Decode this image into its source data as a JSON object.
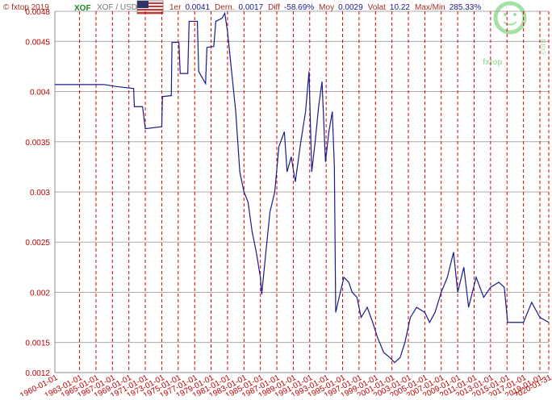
{
  "header": {
    "copyright": "© fxtop 2019",
    "code": "XOF",
    "pair": "XOF / USD",
    "stats": [
      {
        "label": "1er",
        "value": "0.0041"
      },
      {
        "label": "Dern.",
        "value": "0.0017"
      },
      {
        "label": "Diff",
        "value": "-58.69%"
      },
      {
        "label": "Moy",
        "value": "0.0029"
      },
      {
        "label": "Volat",
        "value": "10.22"
      },
      {
        "label": "Max/Min",
        "value": "285.33%"
      }
    ]
  },
  "logo": {
    "name": "fxtop",
    "domain": ".com"
  },
  "chart_data": {
    "type": "line",
    "x": [
      "1960-01-01",
      "1966-01-01",
      "1967-07-01",
      "1969-08-01",
      "1969-09-01",
      "1970-09-01",
      "1971-01-01",
      "1973-01-01",
      "1973-02-01",
      "1974-03-01",
      "1974-04-01",
      "1975-02-01",
      "1975-04-01",
      "1976-03-01",
      "1976-05-01",
      "1977-05-01",
      "1977-07-01",
      "1978-05-01",
      "1978-07-01",
      "1979-05-01",
      "1979-08-01",
      "1980-05-01",
      "1980-09-01",
      "1981-01-01",
      "1981-07-01",
      "1982-01-01",
      "1982-07-01",
      "1983-01-01",
      "1983-07-01",
      "1984-01-01",
      "1984-07-01",
      "1985-01-01",
      "1985-03-01",
      "1985-09-01",
      "1986-03-01",
      "1986-10-01",
      "1987-04-01",
      "1987-12-01",
      "1988-04-01",
      "1988-10-01",
      "1989-04-01",
      "1989-12-01",
      "1990-07-01",
      "1990-12-01",
      "1991-04-01",
      "1991-09-01",
      "1992-02-01",
      "1992-07-01",
      "1992-12-01",
      "1993-05-01",
      "1993-10-01",
      "1994-01-01",
      "1994-03-01",
      "1994-08-01",
      "1995-03-01",
      "1995-10-01",
      "1996-03-01",
      "1996-10-01",
      "1997-04-01",
      "1998-01-01",
      "1998-09-01",
      "1999-04-01",
      "2000-01-01",
      "2000-10-01",
      "2001-05-01",
      "2002-01-01",
      "2002-08-01",
      "2003-04-01",
      "2004-01-01",
      "2005-01-01",
      "2005-08-01",
      "2006-04-01",
      "2007-01-01",
      "2007-10-01",
      "2008-07-01",
      "2009-01-01",
      "2009-10-01",
      "2010-05-01",
      "2011-04-01",
      "2012-03-01",
      "2013-01-01",
      "2014-01-01",
      "2014-09-01",
      "2015-02-01",
      "2016-01-01",
      "2017-01-01",
      "2018-01-01",
      "2019-01-01",
      "2020-01-31"
    ],
    "series": [
      {
        "name": "XOF / USD",
        "color": "#1a1a8c",
        "values": [
          0.00407,
          0.00407,
          0.00405,
          0.00403,
          0.00385,
          0.00385,
          0.00363,
          0.00365,
          0.00395,
          0.00396,
          0.00449,
          0.00449,
          0.00418,
          0.00418,
          0.0047,
          0.0047,
          0.0042,
          0.00408,
          0.00444,
          0.00445,
          0.0047,
          0.00473,
          0.00478,
          0.0046,
          0.0042,
          0.0038,
          0.0032,
          0.003,
          0.0029,
          0.0026,
          0.0024,
          0.00215,
          0.00198,
          0.0024,
          0.0028,
          0.003,
          0.00345,
          0.0036,
          0.0032,
          0.00335,
          0.0031,
          0.0035,
          0.0038,
          0.0042,
          0.0032,
          0.0035,
          0.00385,
          0.0041,
          0.0033,
          0.0036,
          0.0038,
          0.00325,
          0.0018,
          0.00195,
          0.00215,
          0.0021,
          0.002,
          0.00195,
          0.00175,
          0.00185,
          0.0017,
          0.00155,
          0.0014,
          0.00135,
          0.0013,
          0.00135,
          0.0015,
          0.00175,
          0.00185,
          0.0018,
          0.0017,
          0.0018,
          0.002,
          0.00215,
          0.0024,
          0.002,
          0.00225,
          0.00185,
          0.00215,
          0.00195,
          0.00205,
          0.0021,
          0.00205,
          0.0017,
          0.0017,
          0.0017,
          0.0019,
          0.00175,
          0.0017
        ]
      }
    ],
    "xlim": [
      "1960-01-01",
      "2020-01-31"
    ],
    "xticks": [
      "1960-01-01",
      "1963-01-01",
      "1965-01-01",
      "1967-01-01",
      "1969-01-01",
      "1971-01-01",
      "1973-01-01",
      "1975-01-01",
      "1977-01-01",
      "1979-01-01",
      "1981-01-01",
      "1983-01-01",
      "1985-01-01",
      "1987-01-01",
      "1989-01-01",
      "1991-01-01",
      "1993-01-01",
      "1995-01-01",
      "1997-01-01",
      "1999-01-01",
      "2001-01-01",
      "2003-01-01",
      "2005-01-01",
      "2007-01-01",
      "2009-01-01",
      "2011-01-01",
      "2013-01-01",
      "2015-01-01",
      "2017-01-01",
      "2019-01-01",
      "2020-01-31"
    ],
    "ylim": [
      0.0012,
      0.0048
    ],
    "yticks": [
      0.0012,
      0.0015,
      0.002,
      0.0025,
      0.003,
      0.0035,
      0.004,
      0.0045,
      0.0048
    ],
    "grid": true
  }
}
